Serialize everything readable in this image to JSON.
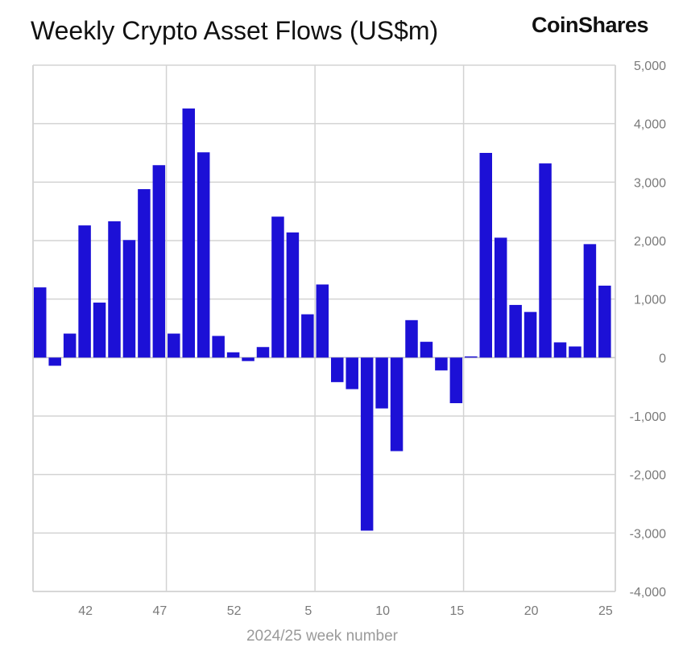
{
  "header": {
    "title": "Weekly Crypto Asset Flows (US$m)",
    "brand": "CoinShares"
  },
  "chart_data": {
    "type": "bar",
    "title": "Weekly Crypto Asset Flows (US$m)",
    "xlabel": "2024/25 week number",
    "ylabel": "",
    "ylim": [
      -4000,
      5000
    ],
    "yticks": [
      5000,
      4000,
      3000,
      2000,
      1000,
      0,
      -1000,
      -2000,
      -3000,
      -4000
    ],
    "ytick_labels": [
      "5,000",
      "4,000",
      "3,000",
      "2,000",
      "1,000",
      "0",
      "-1,000",
      "-2,000",
      "-3,000",
      "-4,000"
    ],
    "grid": true,
    "categories": [
      "39",
      "40",
      "41",
      "42",
      "43",
      "44",
      "45",
      "46",
      "47",
      "48",
      "49",
      "50",
      "51",
      "52",
      "1",
      "2",
      "3",
      "4",
      "5",
      "6",
      "7",
      "8",
      "9",
      "10",
      "11",
      "12",
      "13",
      "14",
      "15",
      "16",
      "17",
      "18",
      "19",
      "20",
      "21",
      "22",
      "23",
      "24",
      "25"
    ],
    "xtick_labels": [
      "42",
      "47",
      "52",
      "5",
      "10",
      "15",
      "20",
      "25"
    ],
    "xtick_indices": [
      3,
      8,
      13,
      18,
      23,
      28,
      33,
      38
    ],
    "values": [
      1200,
      -140,
      410,
      2260,
      940,
      2330,
      2010,
      2880,
      3290,
      410,
      4260,
      3510,
      370,
      90,
      -60,
      180,
      2410,
      2140,
      740,
      1250,
      -420,
      -540,
      -2960,
      -870,
      -1600,
      640,
      270,
      -220,
      -780,
      20,
      3500,
      2050,
      900,
      780,
      3320,
      260,
      190,
      1940,
      1230
    ],
    "bar_color": "#1c10d6"
  }
}
